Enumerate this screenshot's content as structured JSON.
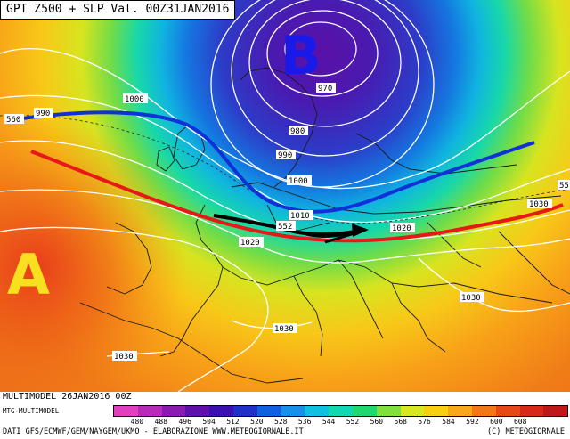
{
  "title": "GPT Z500 + SLP Val. 00Z31JAN2016",
  "pressure_centers": {
    "low": "B",
    "high": "A"
  },
  "isobar_labels": [
    "990",
    "1000",
    "970",
    "980",
    "990",
    "1000",
    "1010",
    "1020",
    "1020",
    "1030",
    "1030",
    "1030"
  ],
  "geopotential_labels": [
    "560",
    "552",
    "55"
  ],
  "footer": {
    "model": "MULTIMODEL 26JAN2016 00Z",
    "sub": "MTG-MULTIMODEL",
    "credits": "DATI GFS/ECMWF/GEM/NAYGEM/UKMO - ELABORAZIONE WWW.METEOGIORNALE.IT",
    "copyright": "(C) METEOGIORNALE"
  },
  "colorbar": {
    "labels": [
      "480",
      "488",
      "496",
      "504",
      "512",
      "520",
      "528",
      "536",
      "544",
      "552",
      "560",
      "568",
      "576",
      "584",
      "592",
      "600",
      "608"
    ],
    "colors": [
      "#e040c0",
      "#b82ab8",
      "#8a1ab0",
      "#6010a8",
      "#3a10b0",
      "#2030c8",
      "#1060e0",
      "#1890e8",
      "#10c0e0",
      "#10d8b0",
      "#20d870",
      "#80e040",
      "#d8e820",
      "#f8d010",
      "#f8a818",
      "#f07818",
      "#e84818",
      "#d82818",
      "#c01818"
    ]
  }
}
